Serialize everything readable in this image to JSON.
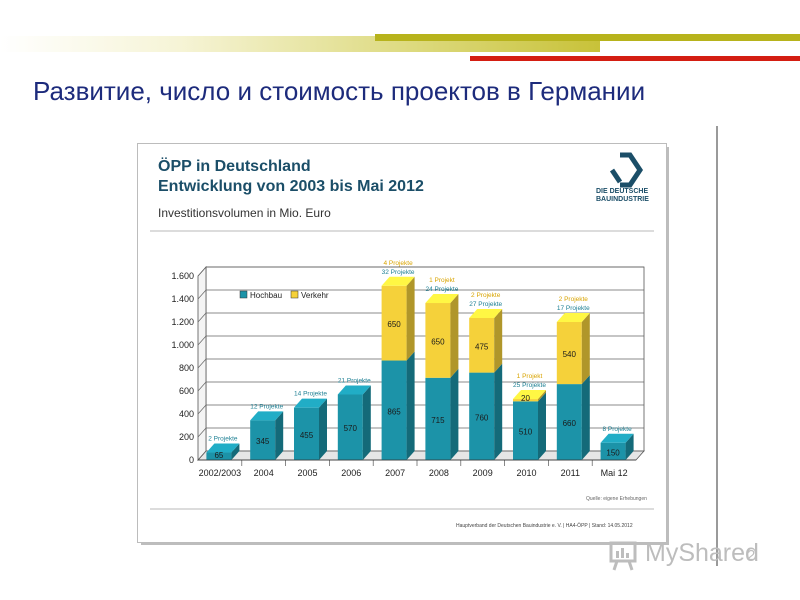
{
  "slide": {
    "title": "Развитие, число и стоимость проектов в Германии",
    "page_number": "2",
    "watermark": "MyShared"
  },
  "card": {
    "title_line1": "ÖPP in Deutschland",
    "title_line2": "Entwicklung von 2003 bis Mai 2012",
    "subtitle": "Investitionsvolumen in Mio. Euro",
    "logo_line1": "DIE DEUTSCHE",
    "logo_line2": "BAUINDUSTRIE",
    "source": "Quelle: eigene Erhebungen",
    "footer": "Hauptverband der Deutschen Bauindustrie e. V. | HA4-ÖPP | Stand: 14.05.2012"
  },
  "colors": {
    "hochbau": "#1c93a8",
    "verkehr": "#f5d13a",
    "title": "#1d2b7c",
    "card_title": "#1b4e68"
  },
  "chart_data": {
    "type": "bar",
    "stacked": true,
    "categories": [
      "2002/2003",
      "2004",
      "2005",
      "2006",
      "2007",
      "2008",
      "2009",
      "2010",
      "2011",
      "Mai 12"
    ],
    "series": [
      {
        "name": "Hochbau",
        "values": [
          65,
          345,
          455,
          570,
          865,
          715,
          760,
          510,
          660,
          150
        ]
      },
      {
        "name": "Verkehr",
        "values": [
          0,
          0,
          0,
          0,
          650,
          650,
          475,
          20,
          540,
          0
        ]
      }
    ],
    "hochbau_labels": [
      "2 Projekte",
      "12 Projekte",
      "14 Projekte",
      "21 Projekte",
      "32 Projekte",
      "24 Projekte",
      "27 Projekte",
      "25 Projekte",
      "17 Projekte",
      "8 Projekte"
    ],
    "verkehr_labels": [
      "",
      "",
      "",
      "",
      "4 Projekte",
      "1 Projekt",
      "2 Projekte",
      "1 Projekt",
      "2 Projekte",
      ""
    ],
    "ylim": [
      0,
      1600
    ],
    "yticks": [
      0,
      200,
      400,
      600,
      800,
      1000,
      1200,
      1400,
      1600
    ],
    "ytick_labels": [
      "0",
      "200",
      "400",
      "600",
      "800",
      "1.000",
      "1.200",
      "1.400",
      "1.600"
    ],
    "legend_position": "top-left",
    "grid": true
  }
}
